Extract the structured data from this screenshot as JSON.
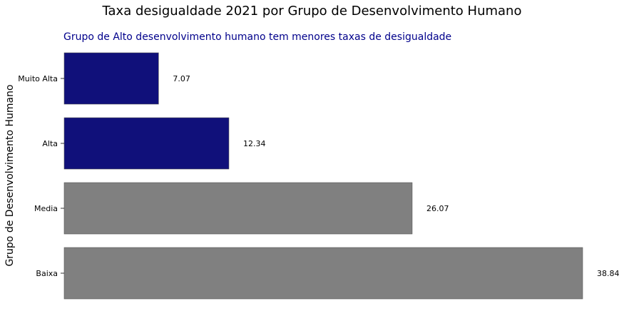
{
  "chart_data": {
    "type": "bar",
    "orientation": "horizontal",
    "title": "Taxa desigualdade 2021 por Grupo de Desenvolvimento Humano",
    "subtitle": "Grupo de Alto desenvolvimento humano tem menores taxas de desigualdade",
    "xlabel": "",
    "ylabel": "Grupo de Desenvolvimento Humano",
    "categories": [
      "Muito Alta",
      "Alta",
      "Media",
      "Baixa"
    ],
    "values": [
      7.07,
      12.34,
      26.07,
      38.84
    ],
    "data_labels": [
      "7.07",
      "12.34",
      "26.07",
      "38.84"
    ],
    "bar_colors": [
      "#10107a",
      "#10107a",
      "#808080",
      "#808080"
    ],
    "title_color": "#000000",
    "subtitle_color": "#00008b",
    "xlim": [
      0,
      38.84
    ],
    "grid": false,
    "x_axis_visible": false
  }
}
